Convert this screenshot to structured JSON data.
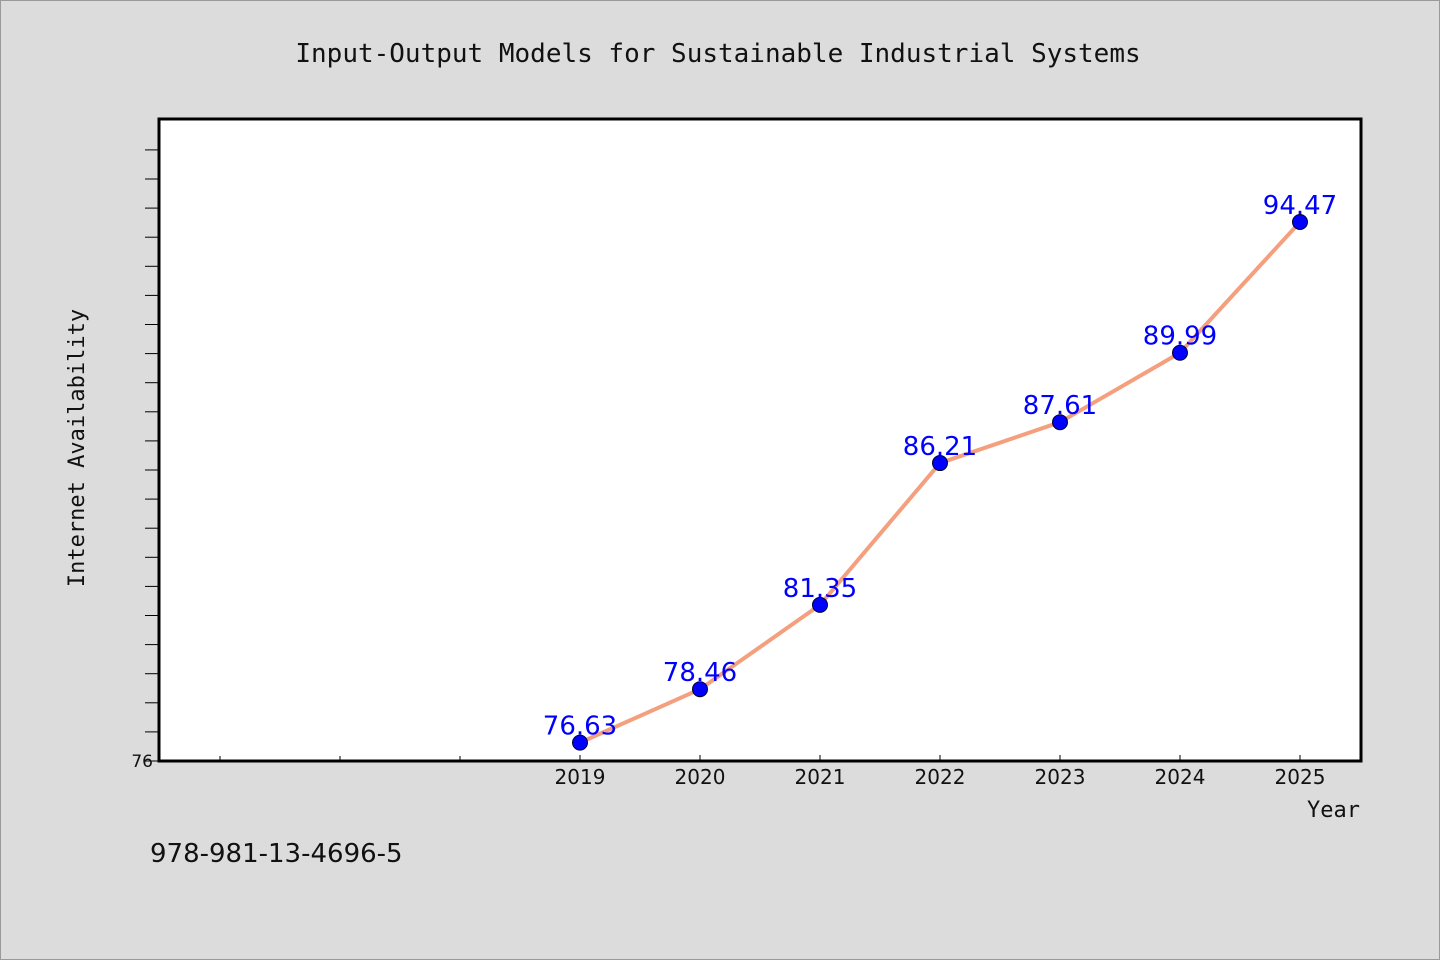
{
  "chart_data": {
    "type": "line",
    "title": "Input-Output Models for Sustainable Industrial Systems",
    "xlabel": "Year",
    "ylabel": "Internet Availability",
    "categories": [
      "2019",
      "2020",
      "2021",
      "2022",
      "2023",
      "2024",
      "2025"
    ],
    "series": [
      {
        "values": [
          76.63,
          78.46,
          81.35,
          86.21,
          87.61,
          89.99,
          94.47
        ],
        "data_labels": [
          "76.63",
          "78.46",
          "81.35",
          "86.21",
          "87.61",
          "89.99",
          "94.47"
        ]
      }
    ],
    "ylim": [
      76,
      98
    ],
    "y_tick_labels": [
      "76"
    ],
    "grid": false,
    "legend": "none",
    "colors": {
      "line": "#f4a07e",
      "marker": "#0000ff",
      "data_label": "#0000ff",
      "background": "#dcdcdc",
      "plot_background": "#ffffff"
    }
  },
  "footer": {
    "isbn": "978-981-13-4696-5"
  }
}
